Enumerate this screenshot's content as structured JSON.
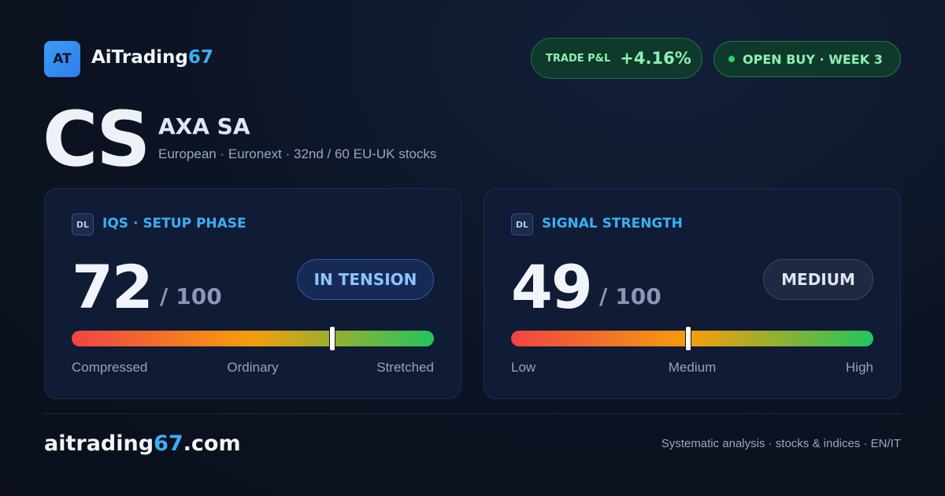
{
  "header": {
    "logo": "AT",
    "brand": "AiTrading",
    "brand_accent": "67",
    "badges": [
      {
        "label": "TRADE P&L",
        "value": "+4.16%"
      },
      {
        "label": "OPEN BUY · WEEK 3"
      }
    ]
  },
  "stock": {
    "ticker": "CS",
    "name": "AXA SA",
    "subtitle": "European · Euronext · 32nd / 60 EU-UK stocks"
  },
  "cards": [
    {
      "icon": "DL",
      "title": "IQS · SETUP PHASE",
      "score": 72,
      "separator": "/",
      "max": 100,
      "pill": "IN TENSION",
      "scale_labels": [
        "Compressed",
        "Ordinary",
        "Stretched"
      ]
    },
    {
      "icon": "DL",
      "title": "SIGNAL STRENGTH",
      "score": 49,
      "separator": "/",
      "max": 100,
      "pill": "MEDIUM",
      "scale_labels": [
        "Low",
        "Medium",
        "High"
      ]
    }
  ],
  "footer": {
    "site": "aitrading",
    "site_accent": "67",
    "site_tld": ".com",
    "tagline": "Systematic analysis · stocks & indices · EN/IT"
  }
}
